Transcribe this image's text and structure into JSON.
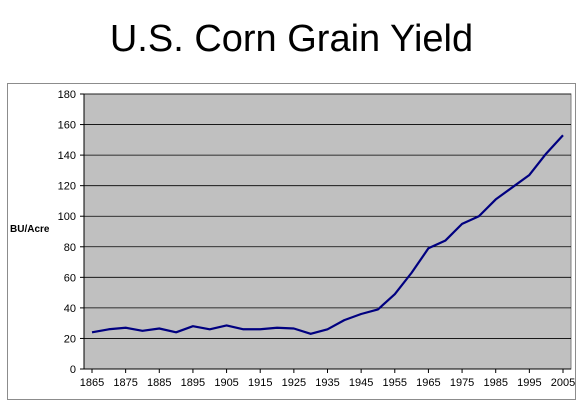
{
  "title": "U.S. Corn Grain Yield",
  "chart_data": {
    "type": "line",
    "title": "U.S. Corn Grain Yield",
    "xlabel": "",
    "ylabel": "BU/Acre",
    "ylim": [
      0,
      180
    ],
    "yticks": [
      0,
      20,
      40,
      60,
      80,
      100,
      120,
      140,
      160,
      180
    ],
    "xticks": [
      1865,
      1875,
      1885,
      1895,
      1905,
      1915,
      1925,
      1935,
      1945,
      1955,
      1965,
      1975,
      1985,
      1995,
      2005
    ],
    "x": [
      1865,
      1870,
      1875,
      1880,
      1885,
      1890,
      1895,
      1900,
      1905,
      1910,
      1915,
      1920,
      1925,
      1930,
      1935,
      1940,
      1945,
      1950,
      1955,
      1960,
      1965,
      1970,
      1975,
      1980,
      1985,
      1990,
      1995,
      2000,
      2005
    ],
    "series": [
      {
        "name": "",
        "values": [
          24,
          26,
          27,
          25,
          26.5,
          24,
          28,
          26,
          28.5,
          26,
          26,
          27,
          26.5,
          23,
          26,
          32,
          36,
          39,
          49,
          63,
          79,
          84,
          95,
          100,
          111,
          119,
          127,
          141,
          153
        ],
        "color": "#000080"
      }
    ],
    "grid": true,
    "legend": "none",
    "plot_background": "#c0c0c0"
  }
}
